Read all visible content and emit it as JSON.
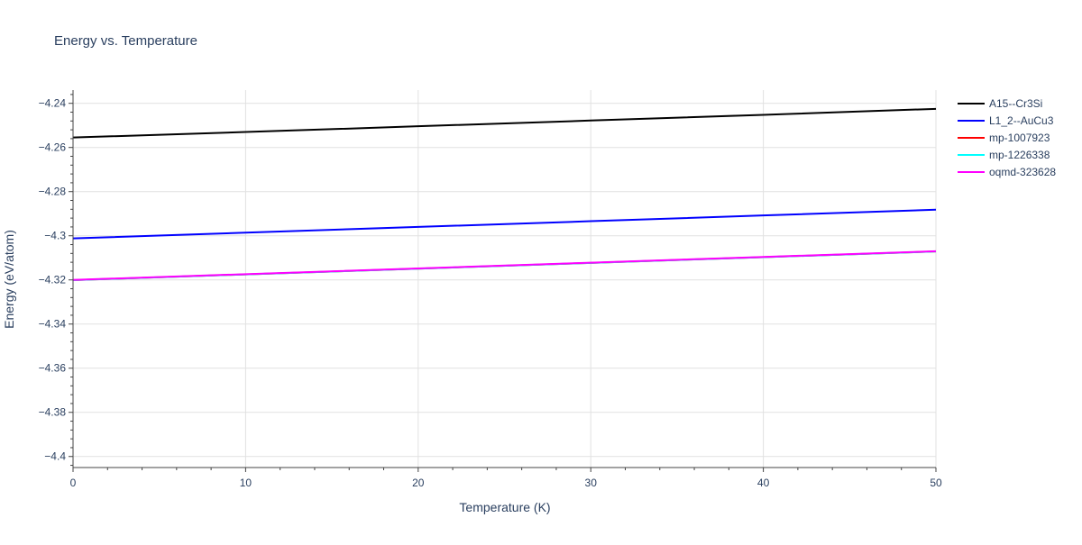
{
  "chart_data": {
    "type": "line",
    "title": "Energy vs. Temperature",
    "xlabel": "Temperature (K)",
    "ylabel": "Energy (eV/atom)",
    "xlim": [
      0,
      50
    ],
    "ylim": [
      -4.405,
      -4.234
    ],
    "xticks": [
      0,
      10,
      20,
      30,
      40,
      50
    ],
    "xtick_labels": [
      "0",
      "10",
      "20",
      "30",
      "40",
      "50"
    ],
    "yticks": [
      -4.24,
      -4.26,
      -4.28,
      -4.3,
      -4.32,
      -4.34,
      -4.36,
      -4.38,
      -4.4
    ],
    "ytick_labels": [
      "−4.24",
      "−4.26",
      "−4.28",
      "−4.3",
      "−4.32",
      "−4.34",
      "−4.36",
      "−4.38",
      "−4.4"
    ],
    "grid": true,
    "legend_position": "top-right outside",
    "series": [
      {
        "name": "A15--Cr3Si",
        "color": "#000000",
        "x": [
          0,
          10,
          20,
          30,
          40,
          50
        ],
        "y": [
          -4.2555,
          -4.253,
          -4.2504,
          -4.2478,
          -4.2452,
          -4.2425
        ]
      },
      {
        "name": "L1_2--AuCu3",
        "color": "#0000ff",
        "x": [
          0,
          10,
          20,
          30,
          40,
          50
        ],
        "y": [
          -4.3012,
          -4.2986,
          -4.296,
          -4.2934,
          -4.2908,
          -4.2882
        ]
      },
      {
        "name": "mp-1007923",
        "color": "#ff0000",
        "x": [
          0,
          10,
          20,
          30,
          40,
          50
        ],
        "y": [
          -4.3201,
          -4.3175,
          -4.3149,
          -4.3123,
          -4.3097,
          -4.3071
        ]
      },
      {
        "name": "mp-1226338",
        "color": "#00ffff",
        "x": [
          0,
          10,
          20,
          30,
          40,
          50
        ],
        "y": [
          -4.3201,
          -4.3175,
          -4.3149,
          -4.3123,
          -4.3097,
          -4.3071
        ]
      },
      {
        "name": "oqmd-323628",
        "color": "#ff00ff",
        "x": [
          0,
          10,
          20,
          30,
          40,
          50
        ],
        "y": [
          -4.32,
          -4.3174,
          -4.3148,
          -4.3122,
          -4.3096,
          -4.307
        ]
      }
    ]
  }
}
